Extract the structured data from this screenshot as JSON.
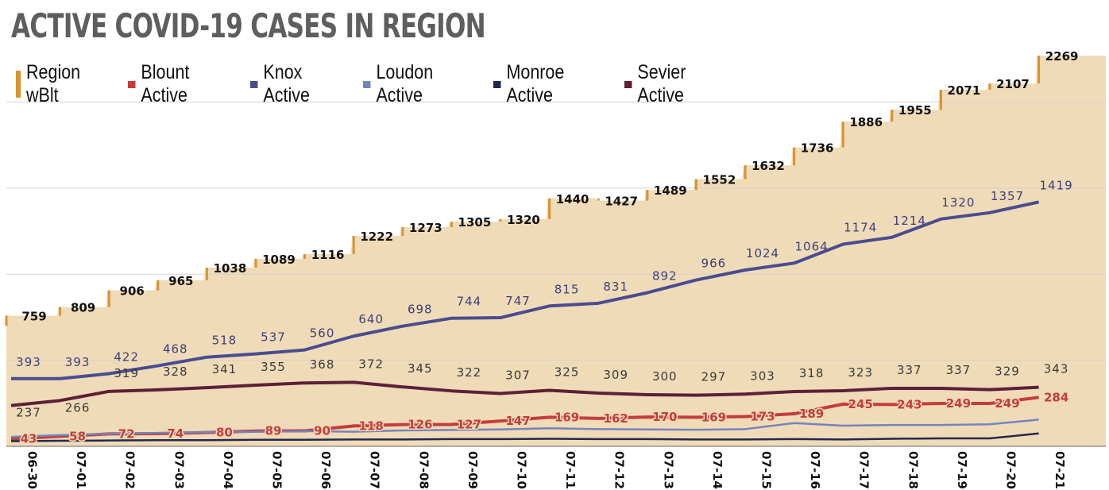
{
  "chart_data": {
    "type": "line",
    "title": "ACTIVE COVID-19 CASES IN REGION",
    "xlabel": "",
    "ylabel": "",
    "ylim": [
      0,
      2500
    ],
    "categories": [
      "06-30",
      "07-01",
      "07-02",
      "07-03",
      "07-04",
      "07-05",
      "07-06",
      "07-07",
      "07-08",
      "07-09",
      "07-10",
      "07-11",
      "07-12",
      "07-13",
      "07-14",
      "07-15",
      "07-16",
      "07-17",
      "07-18",
      "07-19",
      "07-20",
      "07-21"
    ],
    "series": [
      {
        "name": "Region wBlt",
        "color": "#d9922e",
        "fill": "#f0dbb8",
        "style": "step-area",
        "values": [
          759,
          809,
          906,
          965,
          1038,
          1089,
          1116,
          1222,
          1273,
          1305,
          1320,
          1440,
          1427,
          1489,
          1552,
          1632,
          1736,
          1886,
          1955,
          2071,
          2107,
          2269
        ]
      },
      {
        "name": "Knox Active",
        "color": "#4a4c8f",
        "labelColor": "#3d3f7a",
        "values": [
          393,
          393,
          422,
          468,
          518,
          537,
          560,
          640,
          698,
          744,
          747,
          815,
          831,
          892,
          966,
          1024,
          1064,
          1174,
          1214,
          1320,
          1357,
          1419
        ]
      },
      {
        "name": "Sevier Active",
        "color": "#5e1f38",
        "labelColor": "#3a3a3a",
        "values": [
          237,
          266,
          319,
          328,
          341,
          355,
          368,
          372,
          345,
          322,
          307,
          325,
          309,
          300,
          297,
          303,
          318,
          323,
          337,
          337,
          329,
          343
        ]
      },
      {
        "name": "Blount Active",
        "color": "#c43c3c",
        "labelColor": "#c43c3c",
        "values": [
          43,
          58,
          72,
          74,
          80,
          89,
          90,
          118,
          126,
          127,
          147,
          169,
          162,
          170,
          169,
          173,
          189,
          245,
          243,
          249,
          249,
          284
        ]
      },
      {
        "name": "Loudon Active",
        "color": "#7484bd",
        "values": [
          55,
          65,
          72,
          78,
          82,
          85,
          88,
          85,
          92,
          95,
          98,
          105,
          100,
          98,
          96,
          100,
          135,
          120,
          124,
          124,
          128,
          155
        ]
      },
      {
        "name": "Monroe Active",
        "color": "#23284f",
        "values": [
          30,
          32,
          34,
          36,
          36,
          38,
          38,
          40,
          40,
          42,
          42,
          44,
          42,
          42,
          40,
          40,
          42,
          40,
          44,
          46,
          46,
          75
        ]
      }
    ],
    "legend": {
      "position": "top-left",
      "items": [
        {
          "label": "Region wBlt",
          "color": "#d9922e"
        },
        {
          "label": "Blount Active",
          "color": "#c43c3c"
        },
        {
          "label": "Knox Active",
          "color": "#4a4c8f"
        },
        {
          "label": "Loudon Active",
          "color": "#7484bd"
        },
        {
          "label": "Monroe Active",
          "color": "#23284f"
        },
        {
          "label": "Sevier Active",
          "color": "#5e1f38"
        }
      ]
    },
    "grid": true
  }
}
